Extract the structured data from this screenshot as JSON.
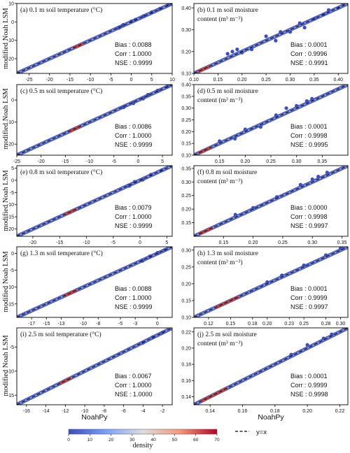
{
  "figure": {
    "ylabel": "modified Noah LSM",
    "xlabel": "NoahPy",
    "colorbar": {
      "label": "density",
      "ticks": [
        "0",
        "10",
        "20",
        "30",
        "40",
        "50",
        "60",
        "70"
      ],
      "min": 0,
      "max": 70
    },
    "legend": {
      "label": "y=x"
    },
    "colors": {
      "point": "#3a4fc4",
      "line": "#000000",
      "cmap_low": "#3b4cc0",
      "cmap_mid": "#dddddd",
      "cmap_high": "#b40426"
    }
  },
  "chart_data": [
    {
      "id": "a",
      "type": "scatter",
      "title": "(a) 0.1 m soil temperature (°C)",
      "xlim": [
        -28,
        10
      ],
      "ylim": [
        -28,
        10
      ],
      "xticks": [
        -25,
        -20,
        -15,
        -10,
        -5,
        0,
        5,
        10
      ],
      "yticks": [
        -20,
        -10,
        0,
        10
      ],
      "tick_dec": 0,
      "bias": "Bias : 0.0088",
      "corr": "Corr : 1.0000",
      "nse": "NSE : 0.9999",
      "points": [
        [
          -3,
          -3.2
        ],
        [
          -2,
          -1.6
        ],
        [
          0,
          0.3
        ],
        [
          1,
          1.2
        ],
        [
          3,
          3.2
        ],
        [
          5,
          5.3
        ],
        [
          7,
          7.2
        ],
        [
          9,
          9.1
        ]
      ],
      "hot": [
        -14,
        -12
      ]
    },
    {
      "id": "b",
      "type": "scatter",
      "title": "(b) 0.1 m soil moisture content (m³ m⁻³)",
      "xlim": [
        0.1,
        0.42
      ],
      "ylim": [
        0.1,
        0.42
      ],
      "xticks": [
        0.1,
        0.15,
        0.2,
        0.25,
        0.3,
        0.35,
        0.4
      ],
      "yticks": [
        0.1,
        0.2,
        0.3,
        0.4
      ],
      "tick_dec": 2,
      "bias": "Bias : 0.0001",
      "corr": "Corr : 0.9996",
      "nse": "NSE : 0.9991",
      "points": [
        [
          0.17,
          0.19
        ],
        [
          0.18,
          0.2
        ],
        [
          0.19,
          0.21
        ],
        [
          0.2,
          0.195
        ],
        [
          0.22,
          0.21
        ],
        [
          0.25,
          0.27
        ],
        [
          0.27,
          0.25
        ],
        [
          0.28,
          0.29
        ],
        [
          0.3,
          0.29
        ],
        [
          0.32,
          0.33
        ],
        [
          0.33,
          0.31
        ],
        [
          0.35,
          0.35
        ],
        [
          0.37,
          0.37
        ],
        [
          0.38,
          0.39
        ],
        [
          0.4,
          0.4
        ],
        [
          0.41,
          0.42
        ]
      ],
      "hot": [
        0.11,
        0.13
      ]
    },
    {
      "id": "c",
      "type": "scatter",
      "title": "(c) 0.5 m soil temperature (°C)",
      "xlim": [
        -25,
        7
      ],
      "ylim": [
        -25,
        7
      ],
      "xticks": [
        -25,
        -20,
        -15,
        -10,
        -5,
        0,
        5
      ],
      "yticks": [
        -20,
        -10,
        0
      ],
      "tick_dec": 0,
      "bias": "Bias : 0.0086",
      "corr": "Corr : 1.0000",
      "nse": "NSE : 0.9999",
      "points": [
        [
          -3,
          -3.3
        ],
        [
          -1,
          -1.5
        ],
        [
          1,
          0.6
        ],
        [
          2,
          2.4
        ],
        [
          4,
          4.3
        ],
        [
          6,
          6.1
        ]
      ],
      "hot": [
        -14,
        -12
      ]
    },
    {
      "id": "d",
      "type": "scatter",
      "title": "(d) 0.5 m soil moisture content (m³ m⁻³)",
      "xlim": [
        0.1,
        0.4
      ],
      "ylim": [
        0.1,
        0.4
      ],
      "xticks": [
        0.15,
        0.2,
        0.25,
        0.3,
        0.35
      ],
      "yticks": [
        0.1,
        0.15,
        0.2,
        0.25,
        0.3,
        0.35,
        0.4
      ],
      "tick_dec": 2,
      "bias": "Bias : 0.0001",
      "corr": "Corr : 0.9998",
      "nse": "NSE : 0.9995",
      "points": [
        [
          0.15,
          0.16
        ],
        [
          0.18,
          0.17
        ],
        [
          0.2,
          0.21
        ],
        [
          0.23,
          0.22
        ],
        [
          0.26,
          0.27
        ],
        [
          0.28,
          0.3
        ],
        [
          0.3,
          0.31
        ],
        [
          0.32,
          0.33
        ],
        [
          0.33,
          0.34
        ]
      ],
      "hot": [
        0.11,
        0.13
      ]
    },
    {
      "id": "e",
      "type": "scatter",
      "title": "(e) 0.8 m soil temperature (°C)",
      "xlim": [
        -23,
        6
      ],
      "ylim": [
        -23,
        6
      ],
      "xticks": [
        -20,
        -15,
        -10,
        -5,
        0,
        5
      ],
      "yticks": [
        -20,
        -15,
        -10,
        -5,
        0,
        5
      ],
      "tick_dec": 0,
      "bias": "Bias : 0.0079",
      "corr": "Corr : 1.0000",
      "nse": "NSE : 0.9999",
      "points": [
        [
          -2,
          -2.3
        ],
        [
          -1,
          -0.6
        ],
        [
          0.5,
          0.2
        ],
        [
          2,
          2.3
        ],
        [
          4,
          4.1
        ]
      ],
      "hot": [
        -14,
        -12
      ]
    },
    {
      "id": "f",
      "type": "scatter",
      "title": "(f) 0.8 m soil moisture content (m³ m⁻³)",
      "xlim": [
        0.1,
        0.36
      ],
      "ylim": [
        0.1,
        0.36
      ],
      "xticks": [
        0.15,
        0.2,
        0.25,
        0.3,
        0.35
      ],
      "yticks": [
        0.15,
        0.2,
        0.25,
        0.3,
        0.35
      ],
      "tick_dec": 2,
      "bias": "Bias : 0.0000",
      "corr": "Corr : 0.9998",
      "nse": "NSE : 0.9997",
      "points": [
        [
          0.17,
          0.18
        ],
        [
          0.2,
          0.205
        ],
        [
          0.24,
          0.245
        ],
        [
          0.28,
          0.29
        ],
        [
          0.3,
          0.31
        ],
        [
          0.31,
          0.32
        ],
        [
          0.325,
          0.335
        ]
      ],
      "hot": [
        0.11,
        0.13
      ]
    },
    {
      "id": "g",
      "type": "scatter",
      "title": "(g) 1.3 m soil temperature (°C)",
      "xlim": [
        -19,
        2
      ],
      "ylim": [
        -19,
        2
      ],
      "xticks": [
        -17,
        -15,
        -13,
        -10,
        -8,
        -5,
        -3,
        0
      ],
      "yticks": [
        -15,
        -10,
        -5,
        0
      ],
      "tick_dec": 0,
      "bias": "Bias : 0.0088",
      "corr": "Corr : 1.0000",
      "nse": "NSE : 0.9999",
      "points": [
        [
          -2,
          -2.2
        ],
        [
          -1,
          -0.8
        ],
        [
          0,
          0.2
        ],
        [
          1,
          1.1
        ]
      ],
      "hot": [
        -12.5,
        -11
      ]
    },
    {
      "id": "h",
      "type": "scatter",
      "title": "(h) 1.3 m soil moisture content (m³ m⁻³)",
      "xlim": [
        0.1,
        0.31
      ],
      "ylim": [
        0.1,
        0.31
      ],
      "xticks": [
        0.12,
        0.15,
        0.18,
        0.2,
        0.23,
        0.25,
        0.28,
        0.3
      ],
      "yticks": [
        0.1,
        0.15,
        0.2,
        0.25,
        0.3
      ],
      "tick_dec": 2,
      "bias": "Bias : 0.0001",
      "corr": "Corr : 0.9999",
      "nse": "NSE : 0.9997",
      "points": [
        [
          0.2,
          0.205
        ],
        [
          0.22,
          0.225
        ],
        [
          0.25,
          0.255
        ],
        [
          0.28,
          0.285
        ],
        [
          0.3,
          0.305
        ]
      ],
      "hot": [
        0.13,
        0.16
      ]
    },
    {
      "id": "i",
      "type": "scatter",
      "title": "(i) 2.5 m soil temperature (°C)",
      "xlim": [
        -17,
        -1
      ],
      "ylim": [
        -17,
        -1
      ],
      "xticks": [
        -16,
        -14,
        -12,
        -10,
        -8,
        -6,
        -4,
        -2
      ],
      "yticks": [
        -15,
        -10,
        -5
      ],
      "tick_dec": 0,
      "bias": "Bias : 0.0067",
      "corr": "Corr : 1.0000",
      "nse": "NSE : 1.0000",
      "points": [
        [
          -4,
          -4.1
        ],
        [
          -3,
          -2.9
        ],
        [
          -2,
          -2.0
        ]
      ],
      "hot": [
        -12.5,
        -11.5
      ]
    },
    {
      "id": "j",
      "type": "scatter",
      "title": "(j) 2.5 m soil moisture content (m³ m⁻³)",
      "xlim": [
        0.13,
        0.225
      ],
      "ylim": [
        0.13,
        0.225
      ],
      "xticks": [
        0.14,
        0.16,
        0.18,
        0.2,
        0.22
      ],
      "yticks": [
        0.14,
        0.16,
        0.18,
        0.2,
        0.22
      ],
      "tick_dec": 2,
      "bias": "Bias : 0.0001",
      "corr": "Corr : 0.9999",
      "nse": "NSE : 0.9998",
      "points": [
        [
          0.19,
          0.192
        ],
        [
          0.2,
          0.204
        ],
        [
          0.21,
          0.212
        ],
        [
          0.215,
          0.217
        ]
      ],
      "hot": [
        0.135,
        0.15
      ]
    }
  ]
}
